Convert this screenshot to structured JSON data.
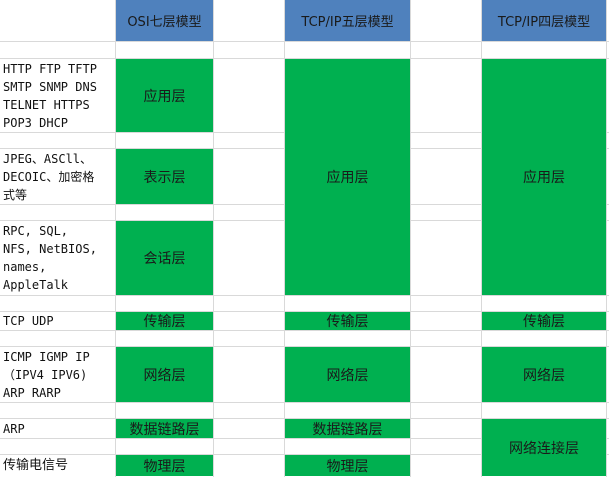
{
  "headers": {
    "osi": "OSI七层模型",
    "tcp5": "TCP/IP五层模型",
    "tcp4": "TCP/IP四层模型"
  },
  "protocols": {
    "application": "HTTP FTP TFTP\nSMTP SNMP DNS\nTELNET HTTPS\nPOP3 DHCP",
    "presentation": "JPEG、ASCll、\nDECOIC、加密格\n式等",
    "session": "RPC, SQL,\nNFS, NetBIOS,\nnames,\nAppleTalk",
    "transport": "TCP UDP",
    "network": "ICMP IGMP IP\n（IPV4 IPV6)\nARP RARP",
    "datalink": "ARP",
    "physical": "传输电信号"
  },
  "osi": {
    "application": "应用层",
    "presentation": "表示层",
    "session": "会话层",
    "transport": "传输层",
    "network": "网络层",
    "datalink": "数据链路层",
    "physical": "物理层"
  },
  "tcp5": {
    "application": "应用层",
    "transport": "传输层",
    "network": "网络层",
    "datalink": "数据链路层",
    "physical": "物理层"
  },
  "tcp4": {
    "application": "应用层",
    "transport": "传输层",
    "network": "网络层",
    "link": "网络连接层"
  },
  "colors": {
    "header": "#4f81bd",
    "layer": "#00b050",
    "grid": "#d9d9d9"
  }
}
